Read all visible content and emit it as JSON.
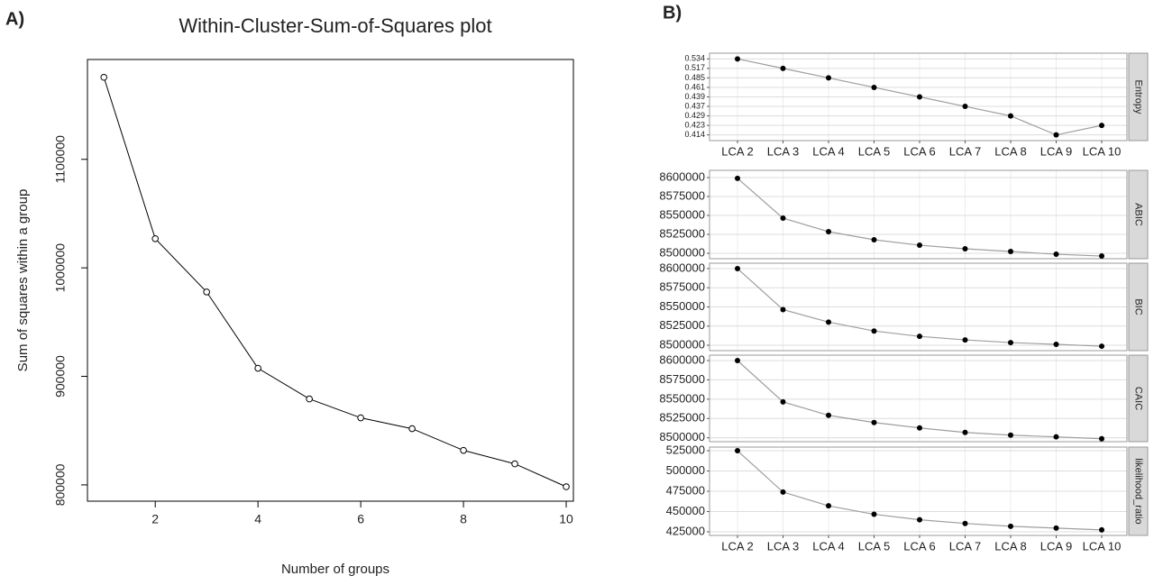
{
  "chart_data": [
    {
      "type": "line",
      "label": "A)",
      "title": "Within-Cluster-Sum-of-Squares plot",
      "x_label": "Number of groups",
      "y_label": "Sum of squares within a group",
      "x": [
        1,
        2,
        3,
        4,
        5,
        6,
        7,
        8,
        9,
        10
      ],
      "values": [
        1175600,
        1026900,
        977800,
        907500,
        879200,
        861800,
        851800,
        831800,
        819400,
        798300
      ],
      "color": "#000000",
      "xlim": [
        0.68,
        10.14
      ],
      "xticks": [
        2,
        4,
        6,
        8,
        10
      ],
      "ylim": [
        785000,
        1192000
      ],
      "yticks": [
        800000,
        900000,
        1000000,
        1100000
      ]
    },
    {
      "type": "facet",
      "label": "B)",
      "categories": [
        "LCA 2",
        "LCA 3",
        "LCA 4",
        "LCA 5",
        "LCA 6",
        "LCA 7",
        "LCA 8",
        "LCA 9",
        "LCA 10"
      ],
      "color": "#9e9e9e",
      "point_color": "#000000",
      "grid": true,
      "panels": [
        {
          "strip": "Entropy",
          "y_scale": "discrete",
          "values": [
            0.534,
            0.517,
            0.485,
            0.461,
            0.439,
            0.437,
            0.429,
            0.414,
            0.423
          ],
          "yticks": [
            0.414,
            0.423,
            0.429,
            0.437,
            0.439,
            0.461,
            0.485,
            0.517,
            0.534
          ]
        },
        {
          "strip": "ABIC",
          "values": [
            8599000,
            8546400,
            8528600,
            8517900,
            8510700,
            8506000,
            8502400,
            8498800,
            8496400
          ],
          "ylim": [
            8492900,
            8609500
          ],
          "yticks": [
            8500000,
            8525000,
            8550000,
            8575000,
            8600000
          ]
        },
        {
          "strip": "BIC",
          "values": [
            8600000,
            8546500,
            8530200,
            8518600,
            8511600,
            8507000,
            8503500,
            8501200,
            8498800
          ],
          "ylim": [
            8493000,
            8607000
          ],
          "yticks": [
            8500000,
            8525000,
            8550000,
            8575000,
            8600000
          ]
        },
        {
          "strip": "CAIC",
          "values": [
            8600000,
            8546500,
            8529100,
            8519800,
            8512800,
            8507000,
            8503500,
            8501200,
            8498800
          ],
          "ylim": [
            8495000,
            8607000
          ],
          "yticks": [
            8500000,
            8525000,
            8550000,
            8575000,
            8600000
          ]
        },
        {
          "strip": "likelihood_ratio",
          "values": [
            525000,
            474000,
            457000,
            446600,
            439800,
            435300,
            431800,
            429500,
            427300
          ],
          "ylim": [
            420500,
            529500
          ],
          "yticks": [
            425000,
            450000,
            475000,
            500000,
            525000
          ]
        }
      ]
    }
  ]
}
